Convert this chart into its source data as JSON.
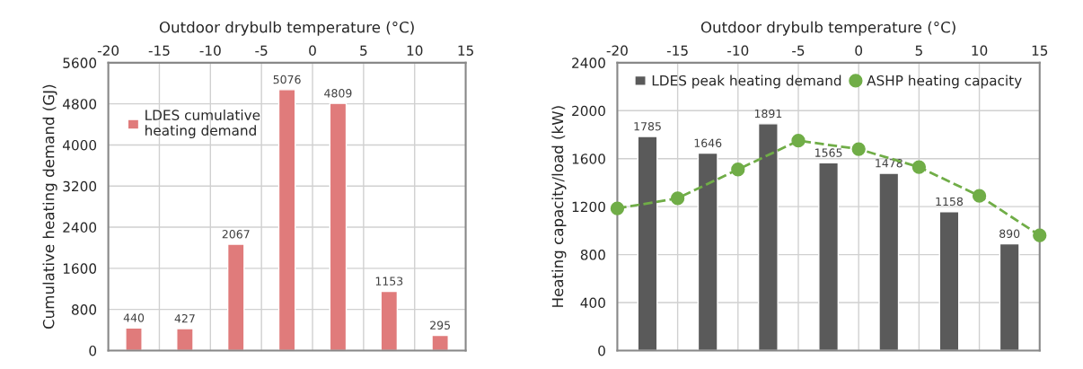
{
  "chart_data": [
    {
      "type": "bar",
      "xlabel": "Outdoor drybulb temperature (°C)",
      "ylabel": "Cumulative heating demand (GJ)",
      "x": [
        -17.5,
        -12.5,
        -7.5,
        -2.5,
        2.5,
        7.5,
        12.5
      ],
      "xlim": [
        -20,
        15
      ],
      "xticks": [
        -20,
        -15,
        -10,
        -5,
        0,
        5,
        10,
        15
      ],
      "ylim": [
        0,
        5600
      ],
      "yticks": [
        0,
        800,
        1600,
        2400,
        3200,
        4000,
        4800,
        5600
      ],
      "grid": true,
      "legend": "top left",
      "data_labels": true,
      "series": [
        {
          "name": "LDES cumulative\nheating demand",
          "color": "#e07b7b",
          "values": [
            440,
            427,
            2067,
            5076,
            4809,
            1153,
            295
          ]
        }
      ]
    },
    {
      "type": "bar",
      "xlabel": "Outdoor drybulb temperature (°C)",
      "ylabel": "Heating capacity/load (kW)",
      "xlim": [
        -20,
        15
      ],
      "xticks": [
        -20,
        -15,
        -10,
        -5,
        0,
        5,
        10,
        15
      ],
      "ylim": [
        0,
        2400
      ],
      "yticks": [
        0,
        400,
        800,
        1200,
        1600,
        2000,
        2400
      ],
      "grid": true,
      "legend": "top",
      "series": [
        {
          "type": "bar",
          "name": "LDES peak heating demand",
          "color": "#5a5a5a",
          "x": [
            -17.5,
            -12.5,
            -7.5,
            -2.5,
            2.5,
            7.5,
            12.5
          ],
          "values": [
            1785,
            1646,
            1891,
            1565,
            1478,
            1158,
            890
          ],
          "value_labels": [
            "1785",
            "1646",
            "1891",
            "1565",
            "1478",
            "1158",
            "890"
          ]
        },
        {
          "type": "line",
          "name": "ASHP heating capacity",
          "color": "#70ad47",
          "marker": "circle",
          "line_style": "dashed",
          "x": [
            -20,
            -15,
            -10,
            -5,
            0,
            5,
            10,
            15
          ],
          "values": [
            1185,
            1270,
            1510,
            1750,
            1680,
            1530,
            1290,
            960
          ]
        }
      ]
    }
  ]
}
